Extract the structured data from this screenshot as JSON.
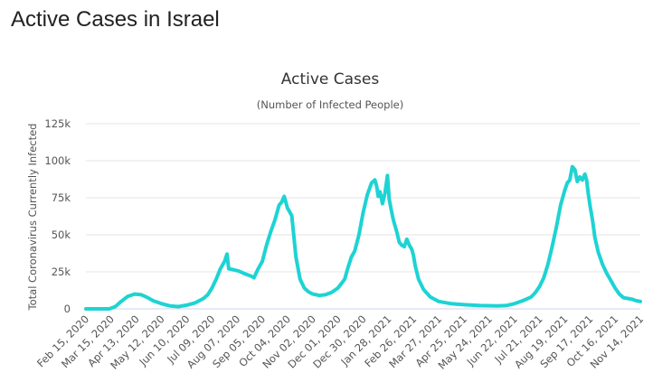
{
  "page": {
    "heading": "Active Cases in Israel"
  },
  "chart_data": {
    "type": "line",
    "title": "Active Cases",
    "subtitle": "(Number of Infected People)",
    "xlabel": "",
    "ylabel": "Total Coronavirus Currently Infected",
    "ylim": [
      0,
      125000
    ],
    "yticks": [
      "0",
      "25k",
      "50k",
      "75k",
      "100k",
      "125k"
    ],
    "grid": true,
    "line_color": "#1ed3d3",
    "categories": [
      "Feb 15, 2020",
      "Mar 15, 2020",
      "Apr 13, 2020",
      "May 12, 2020",
      "Jun 10, 2020",
      "Jul 09, 2020",
      "Aug 07, 2020",
      "Sep 05, 2020",
      "Oct 04, 2020",
      "Nov 02, 2020",
      "Dec 01, 2020",
      "Dec 30, 2020",
      "Jan 28, 2021",
      "Feb 26, 2021",
      "Mar 27, 2021",
      "Apr 25, 2021",
      "May 24, 2021",
      "Jun 22, 2021",
      "Jul 21, 2021",
      "Aug 19, 2021",
      "Sep 17, 2021",
      "Oct 16, 2021",
      "Nov 14, 2021"
    ],
    "series": [
      {
        "values": [
          [
            0,
            0
          ],
          [
            28,
            0
          ],
          [
            35,
            1500
          ],
          [
            42,
            5000
          ],
          [
            50,
            8500
          ],
          [
            58,
            10000
          ],
          [
            66,
            9500
          ],
          [
            72,
            8000
          ],
          [
            80,
            5500
          ],
          [
            90,
            3500
          ],
          [
            100,
            2000
          ],
          [
            110,
            1500
          ],
          [
            120,
            2500
          ],
          [
            130,
            4000
          ],
          [
            140,
            7000
          ],
          [
            145,
            9500
          ],
          [
            150,
            14000
          ],
          [
            155,
            20000
          ],
          [
            160,
            27000
          ],
          [
            165,
            32000
          ],
          [
            168,
            37000
          ],
          [
            170,
            27000
          ],
          [
            175,
            26500
          ],
          [
            182,
            25500
          ],
          [
            190,
            23500
          ],
          [
            197,
            22000
          ],
          [
            200,
            21000
          ],
          [
            205,
            27000
          ],
          [
            210,
            32000
          ],
          [
            215,
            43000
          ],
          [
            220,
            52000
          ],
          [
            225,
            60000
          ],
          [
            230,
            70000
          ],
          [
            233,
            72000
          ],
          [
            236,
            76000
          ],
          [
            240,
            68000
          ],
          [
            245,
            63000
          ],
          [
            250,
            35000
          ],
          [
            255,
            20000
          ],
          [
            260,
            14000
          ],
          [
            265,
            11500
          ],
          [
            270,
            10000
          ],
          [
            278,
            9000
          ],
          [
            285,
            9500
          ],
          [
            292,
            11000
          ],
          [
            300,
            14000
          ],
          [
            308,
            20000
          ],
          [
            312,
            28000
          ],
          [
            316,
            35000
          ],
          [
            320,
            39000
          ],
          [
            325,
            50000
          ],
          [
            330,
            65000
          ],
          [
            335,
            77000
          ],
          [
            340,
            85000
          ],
          [
            344,
            87000
          ],
          [
            346,
            83000
          ],
          [
            348,
            76000
          ],
          [
            350,
            79000
          ],
          [
            353,
            71000
          ],
          [
            356,
            78000
          ],
          [
            359,
            90000
          ],
          [
            361,
            74000
          ],
          [
            363,
            68000
          ],
          [
            366,
            60000
          ],
          [
            370,
            52000
          ],
          [
            373,
            45000
          ],
          [
            376,
            43000
          ],
          [
            379,
            42000
          ],
          [
            382,
            47000
          ],
          [
            385,
            43000
          ],
          [
            388,
            40000
          ],
          [
            390,
            36000
          ],
          [
            392,
            29000
          ],
          [
            396,
            20000
          ],
          [
            402,
            13000
          ],
          [
            410,
            8000
          ],
          [
            420,
            5000
          ],
          [
            435,
            3500
          ],
          [
            450,
            2800
          ],
          [
            470,
            2200
          ],
          [
            490,
            2000
          ],
          [
            500,
            2200
          ],
          [
            510,
            3500
          ],
          [
            520,
            5500
          ],
          [
            530,
            8000
          ],
          [
            535,
            11000
          ],
          [
            540,
            15000
          ],
          [
            545,
            21000
          ],
          [
            550,
            30000
          ],
          [
            555,
            42000
          ],
          [
            560,
            55000
          ],
          [
            565,
            70000
          ],
          [
            570,
            80000
          ],
          [
            573,
            85000
          ],
          [
            576,
            87000
          ],
          [
            579,
            96000
          ],
          [
            582,
            94000
          ],
          [
            585,
            86000
          ],
          [
            588,
            89000
          ],
          [
            591,
            87000
          ],
          [
            594,
            91000
          ],
          [
            596,
            87000
          ],
          [
            598,
            78000
          ],
          [
            600,
            70000
          ],
          [
            603,
            60000
          ],
          [
            606,
            48000
          ],
          [
            610,
            38000
          ],
          [
            615,
            30000
          ],
          [
            620,
            24000
          ],
          [
            625,
            19000
          ],
          [
            630,
            14000
          ],
          [
            635,
            10000
          ],
          [
            640,
            7500
          ],
          [
            645,
            7000
          ],
          [
            650,
            6500
          ],
          [
            655,
            5500
          ],
          [
            660,
            5000
          ]
        ]
      }
    ]
  }
}
